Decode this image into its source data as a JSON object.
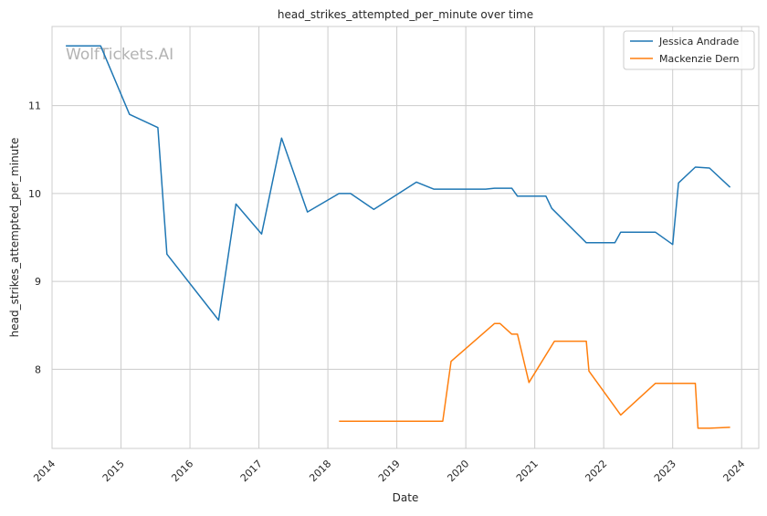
{
  "chart_data": {
    "type": "line",
    "title": "head_strikes_attempted_per_minute over time",
    "xlabel": "Date",
    "ylabel": "head_strikes_attempted_per_minute",
    "watermark": "WolfTickets.AI",
    "x_ticks": [
      "2014",
      "2015",
      "2016",
      "2017",
      "2018",
      "2019",
      "2020",
      "2021",
      "2022",
      "2023",
      "2024"
    ],
    "y_ticks": [
      "8",
      "9",
      "10",
      "11"
    ],
    "xlim": [
      "2014-01-01",
      "2024-04-01"
    ],
    "ylim": [
      7.1,
      11.9
    ],
    "grid": true,
    "legend_position": "top-right",
    "series": [
      {
        "name": "Jessica Andrade",
        "color": "#1f77b4",
        "points": [
          [
            "2014-03-15",
            11.68
          ],
          [
            "2014-09-15",
            11.68
          ],
          [
            "2015-02-15",
            10.9
          ],
          [
            "2015-07-15",
            10.75
          ],
          [
            "2015-09-01",
            9.31
          ],
          [
            "2016-06-01",
            8.56
          ],
          [
            "2016-09-01",
            9.88
          ],
          [
            "2017-01-15",
            9.54
          ],
          [
            "2017-05-01",
            10.63
          ],
          [
            "2017-09-15",
            9.79
          ],
          [
            "2018-03-01",
            10.0
          ],
          [
            "2018-05-01",
            10.0
          ],
          [
            "2018-09-01",
            9.82
          ],
          [
            "2019-04-15",
            10.13
          ],
          [
            "2019-07-15",
            10.05
          ],
          [
            "2020-04-15",
            10.05
          ],
          [
            "2020-06-01",
            10.06
          ],
          [
            "2020-09-01",
            10.06
          ],
          [
            "2020-10-01",
            9.97
          ],
          [
            "2021-03-01",
            9.97
          ],
          [
            "2021-04-01",
            9.83
          ],
          [
            "2021-10-01",
            9.44
          ],
          [
            "2022-03-01",
            9.44
          ],
          [
            "2022-04-01",
            9.56
          ],
          [
            "2022-10-01",
            9.56
          ],
          [
            "2023-01-01",
            9.42
          ],
          [
            "2023-02-01",
            10.12
          ],
          [
            "2023-05-01",
            10.3
          ],
          [
            "2023-07-15",
            10.29
          ],
          [
            "2023-11-01",
            10.07
          ]
        ]
      },
      {
        "name": "Mackenzie Dern",
        "color": "#ff7f0e",
        "points": [
          [
            "2018-03-01",
            7.41
          ],
          [
            "2019-09-01",
            7.41
          ],
          [
            "2019-10-15",
            8.09
          ],
          [
            "2020-06-01",
            8.52
          ],
          [
            "2020-07-01",
            8.52
          ],
          [
            "2020-09-01",
            8.4
          ],
          [
            "2020-10-01",
            8.4
          ],
          [
            "2020-12-01",
            7.85
          ],
          [
            "2021-04-15",
            8.32
          ],
          [
            "2021-10-01",
            8.32
          ],
          [
            "2021-10-15",
            7.98
          ],
          [
            "2022-04-01",
            7.48
          ],
          [
            "2022-10-01",
            7.84
          ],
          [
            "2023-05-01",
            7.84
          ],
          [
            "2023-05-15",
            7.33
          ],
          [
            "2023-07-15",
            7.33
          ],
          [
            "2023-11-01",
            7.34
          ]
        ]
      }
    ]
  }
}
